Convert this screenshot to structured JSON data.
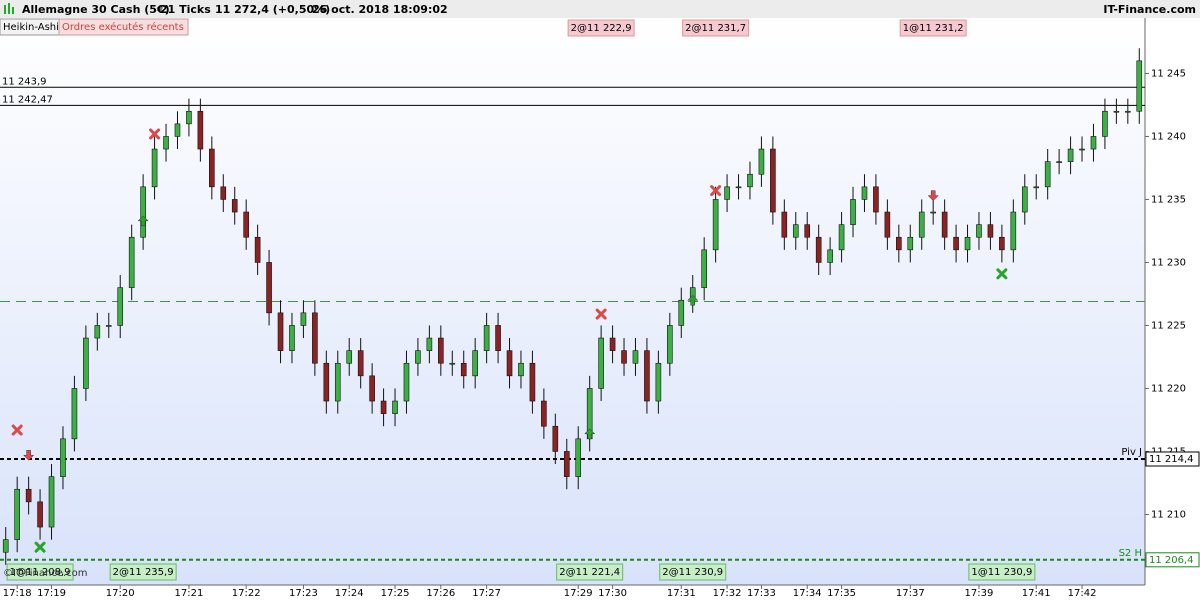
{
  "header": {
    "instrument": "Allemagne 30 Cash (5€)",
    "ticks": "21 Ticks",
    "last": "11 272,4 (+0,50%)",
    "datetime": "26 oct. 2018 18:09:02",
    "brand": "IT-Finance.com"
  },
  "tabs": [
    "Heikin-Ashi",
    "Ordres exécutés récents"
  ],
  "watermark": "©IT-Finance.com",
  "chart_data": {
    "type": "candlestick",
    "categories": [
      null,
      "17:18",
      null,
      null,
      "17:19",
      null,
      null,
      null,
      null,
      null,
      "17:20",
      null,
      null,
      null,
      null,
      null,
      "17:21",
      null,
      null,
      null,
      null,
      "17:22",
      null,
      null,
      null,
      null,
      "17:23",
      null,
      null,
      null,
      "17:24",
      null,
      null,
      null,
      "17:25",
      null,
      null,
      null,
      "17:26",
      null,
      null,
      null,
      "17:27",
      null,
      null,
      null,
      null,
      null,
      null,
      null,
      "17:29",
      null,
      null,
      "17:30",
      null,
      null,
      null,
      null,
      null,
      "17:31",
      null,
      null,
      null,
      "17:32",
      null,
      null,
      "17:33",
      null,
      null,
      null,
      "17:34",
      null,
      null,
      "17:35",
      null,
      null,
      null,
      null,
      null,
      "17:37",
      null,
      null,
      null,
      null,
      null,
      "17:39",
      null,
      null,
      null,
      null,
      "17:41",
      null,
      null,
      null,
      "17:42",
      null,
      null,
      null,
      null,
      null
    ],
    "open": [
      11207,
      11208,
      11212,
      11211,
      11209,
      11213,
      11216,
      11220,
      11224,
      11225,
      11225,
      11228,
      11232,
      11236,
      11239,
      11240,
      11241,
      11242,
      11239,
      11236,
      11235,
      11234,
      11232,
      11230,
      11226,
      11223,
      11225,
      11226,
      11222,
      11219,
      11222,
      11223,
      11221,
      11219,
      11218,
      11219,
      11222,
      11223,
      11224,
      11222,
      11222,
      11221,
      11223,
      11225,
      11223,
      11221,
      11222,
      11219,
      11217,
      11215,
      11213,
      11216,
      11220,
      11224,
      11223,
      11222,
      11223,
      11219,
      11222,
      11225,
      11227,
      11228,
      11231,
      11235,
      11236,
      11236,
      11237,
      11239,
      11234,
      11232,
      11233,
      11232,
      11230,
      11231,
      11233,
      11235,
      11236,
      11234,
      11232,
      11231,
      11232,
      11234,
      11234,
      11232,
      11231,
      11232,
      11233,
      11232,
      11231,
      11234,
      11236,
      11236,
      11238,
      11238,
      11239,
      11239,
      11240,
      11242,
      11242,
      11242
    ],
    "high": [
      11209,
      11213,
      11213,
      11212,
      11214,
      11217,
      11221,
      11225,
      11226,
      11226,
      11229,
      11233,
      11237,
      11240,
      11241,
      11242,
      11243,
      11243,
      11240,
      11237,
      11236,
      11235,
      11233,
      11231,
      11227,
      11226,
      11227,
      11227,
      11223,
      11223,
      11224,
      11224,
      11222,
      11220,
      11220,
      11223,
      11224,
      11225,
      11225,
      11223,
      11223,
      11224,
      11226,
      11226,
      11224,
      11223,
      11223,
      11220,
      11218,
      11216,
      11217,
      11221,
      11225,
      11225,
      11224,
      11224,
      11224,
      11223,
      11226,
      11228,
      11229,
      11232,
      11236,
      11237,
      11237,
      11238,
      11240,
      11240,
      11235,
      11234,
      11234,
      11233,
      11232,
      11234,
      11236,
      11237,
      11237,
      11235,
      11233,
      11233,
      11235,
      11235,
      11235,
      11233,
      11233,
      11234,
      11234,
      11233,
      11235,
      11237,
      11237,
      11239,
      11239,
      11240,
      11240,
      11241,
      11243,
      11243,
      11243,
      11247
    ],
    "low": [
      11206,
      11207,
      11210,
      11208,
      11208,
      11212,
      11215,
      11219,
      11223,
      11224,
      11224,
      11227,
      11231,
      11235,
      11238,
      11239,
      11240,
      11238,
      11235,
      11234,
      11233,
      11231,
      11229,
      11225,
      11222,
      11222,
      11224,
      11221,
      11218,
      11218,
      11221,
      11220,
      11218,
      11217,
      11217,
      11218,
      11221,
      11222,
      11221,
      11221,
      11220,
      11220,
      11222,
      11222,
      11220,
      11220,
      11218,
      11216,
      11214,
      11212,
      11212,
      11215,
      11219,
      11222,
      11221,
      11221,
      11218,
      11218,
      11221,
      11224,
      11226,
      11227,
      11230,
      11234,
      11235,
      11235,
      11236,
      11233,
      11231,
      11231,
      11231,
      11229,
      11229,
      11230,
      11232,
      11234,
      11233,
      11231,
      11230,
      11230,
      11231,
      11233,
      11231,
      11230,
      11230,
      11231,
      11231,
      11230,
      11230,
      11233,
      11235,
      11235,
      11237,
      11237,
      11238,
      11238,
      11239,
      11241,
      11241,
      11241
    ],
    "close": [
      11208,
      11212,
      11211,
      11209,
      11213,
      11216,
      11220,
      11224,
      11225,
      11225,
      11228,
      11232,
      11236,
      11239,
      11240,
      11241,
      11242,
      11239,
      11236,
      11235,
      11234,
      11232,
      11230,
      11226,
      11223,
      11225,
      11226,
      11222,
      11219,
      11222,
      11223,
      11221,
      11219,
      11218,
      11219,
      11222,
      11223,
      11224,
      11222,
      11222,
      11221,
      11223,
      11225,
      11223,
      11221,
      11222,
      11219,
      11217,
      11215,
      11213,
      11216,
      11220,
      11224,
      11223,
      11222,
      11223,
      11219,
      11222,
      11225,
      11227,
      11228,
      11231,
      11235,
      11236,
      11236,
      11237,
      11239,
      11234,
      11232,
      11233,
      11232,
      11230,
      11231,
      11233,
      11235,
      11236,
      11234,
      11232,
      11231,
      11232,
      11234,
      11234,
      11232,
      11231,
      11232,
      11233,
      11232,
      11231,
      11234,
      11236,
      11236,
      11238,
      11238,
      11239,
      11239,
      11240,
      11242,
      11242,
      11242,
      11246
    ],
    "up_color": "#3cb043",
    "down_color": "#8b2323",
    "ylim": [
      11204.4,
      11249.4
    ],
    "yticks": [
      {
        "value": 11210,
        "label": "11 210"
      },
      {
        "value": 11215,
        "label": "11 215"
      },
      {
        "value": 11220,
        "label": "11 220"
      },
      {
        "value": 11225,
        "label": "11 225"
      },
      {
        "value": 11230,
        "label": "11 230"
      },
      {
        "value": 11235,
        "label": "11 235"
      },
      {
        "value": 11240,
        "label": "11 240"
      },
      {
        "value": 11245,
        "label": "11 245"
      }
    ],
    "levels": [
      {
        "value": 11243.9,
        "label": "11 243,9",
        "style": "solid",
        "color": "#000000"
      },
      {
        "value": 11242.47,
        "label": "11 242,47",
        "style": "solid",
        "color": "#000000"
      },
      {
        "value": 11226.9,
        "style": "longdash",
        "color": "#3a9a3a"
      },
      {
        "value": 11214.4,
        "name": "Piv J",
        "label": "11 214,4",
        "style": "dotted",
        "color": "#000000"
      },
      {
        "value": 11206.4,
        "name": "S2 H",
        "label": "11 206,4",
        "style": "dotted",
        "color": "#1a8a1a"
      }
    ],
    "trades": [
      {
        "label": "1@11 208,9",
        "index": 3,
        "side": "buy"
      },
      {
        "label": "2@11 235,9",
        "index": 12,
        "side": "buy"
      },
      {
        "label": "2@11 222,9",
        "index": 52,
        "side": "sell"
      },
      {
        "label": "2@11 221,4",
        "index": 51,
        "side": "buy"
      },
      {
        "label": "2@11 231,7",
        "index": 62,
        "side": "sell"
      },
      {
        "label": "2@11 230,9",
        "index": 60,
        "side": "buy"
      },
      {
        "label": "1@11 231,2",
        "index": 81,
        "side": "sell"
      },
      {
        "label": "1@11 230,9",
        "index": 87,
        "side": "buy"
      }
    ],
    "markers": [
      {
        "shape": "x",
        "side": "sell",
        "index": 1,
        "price": 11216.7
      },
      {
        "shape": "arrow",
        "side": "sell",
        "index": 2,
        "price": 11214.7
      },
      {
        "shape": "x",
        "side": "buy",
        "index": 3,
        "price": 11207.4
      },
      {
        "shape": "arrow",
        "side": "buy",
        "index": 12,
        "price": 11233.3
      },
      {
        "shape": "x",
        "side": "sell",
        "index": 13,
        "price": 11240.2
      },
      {
        "shape": "arrow",
        "side": "buy",
        "index": 51,
        "price": 11216.4
      },
      {
        "shape": "x",
        "side": "sell",
        "index": 52,
        "price": 11225.9
      },
      {
        "shape": "arrow",
        "side": "buy",
        "index": 60,
        "price": 11227
      },
      {
        "shape": "x",
        "side": "sell",
        "index": 62,
        "price": 11235.7
      },
      {
        "shape": "arrow",
        "side": "sell",
        "index": 81,
        "price": 11235.3
      },
      {
        "shape": "x",
        "side": "buy",
        "index": 87,
        "price": 11229.1
      }
    ]
  }
}
